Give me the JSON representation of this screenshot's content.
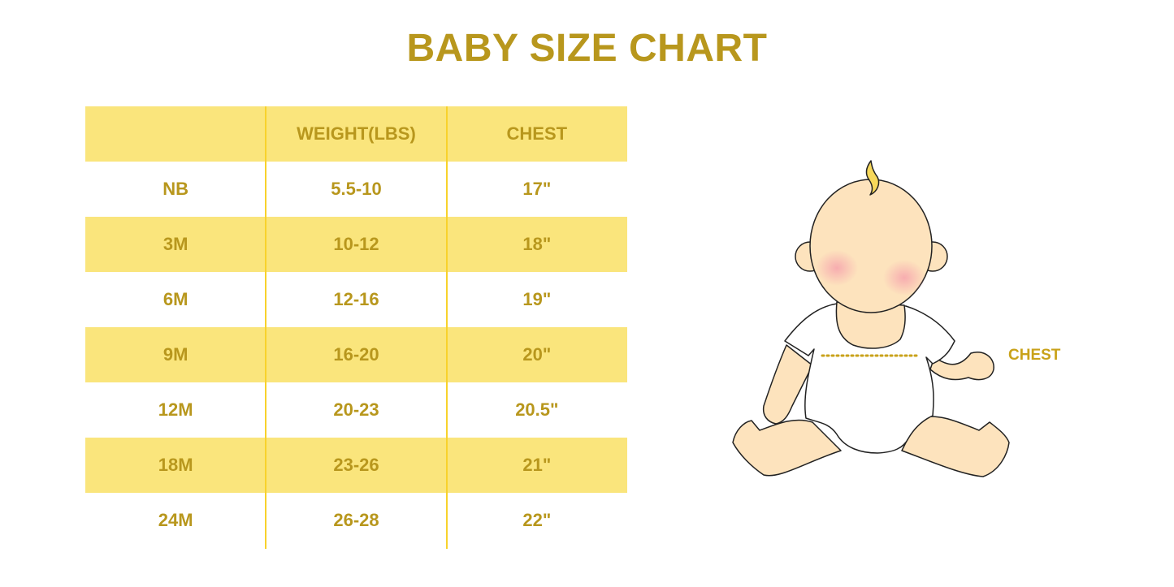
{
  "title": "BABY SIZE CHART",
  "table": {
    "headers": [
      "",
      "WEIGHT(LBS)",
      "CHEST"
    ],
    "rows": [
      [
        "NB",
        "5.5-10",
        "17\""
      ],
      [
        "3M",
        "10-12",
        "18\""
      ],
      [
        "6M",
        "12-16",
        "19\""
      ],
      [
        "9M",
        "16-20",
        "20\""
      ],
      [
        "12M",
        "20-23",
        "20.5\""
      ],
      [
        "18M",
        "23-26",
        "21\""
      ],
      [
        "24M",
        "26-28",
        "22\""
      ]
    ]
  },
  "illustration": {
    "label": "CHEST"
  },
  "colors": {
    "text": "#b8971d",
    "band": "#fae57c",
    "divider": "#f8d22c"
  }
}
